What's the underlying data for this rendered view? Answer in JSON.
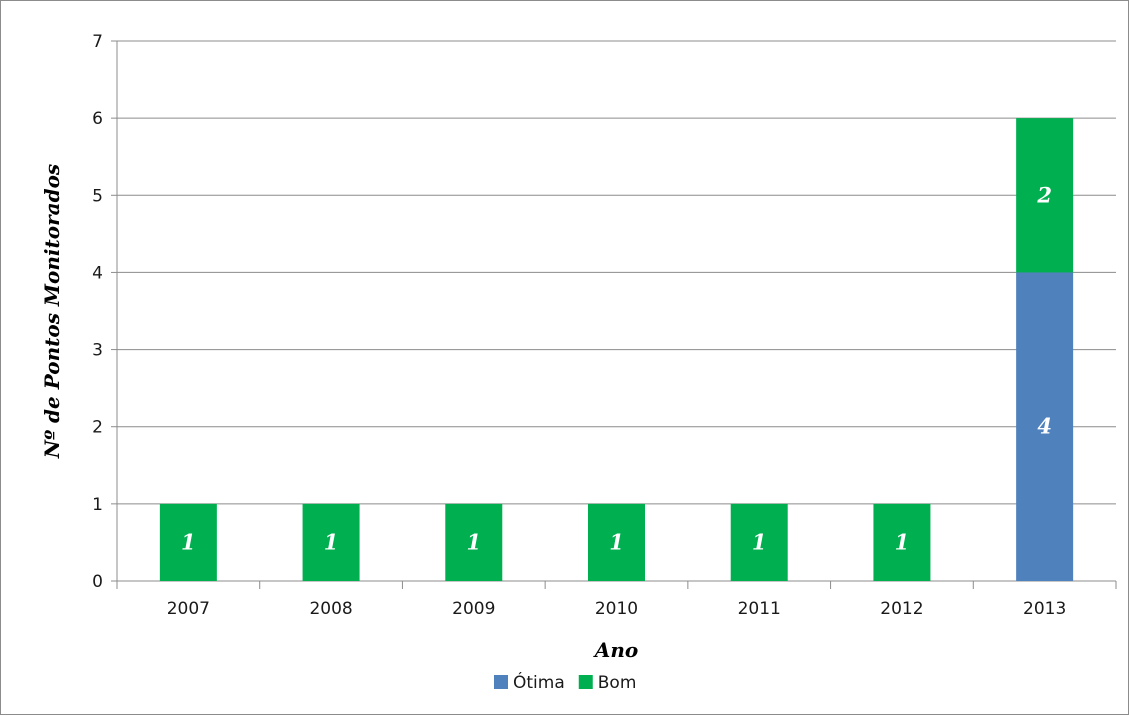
{
  "chart_data": {
    "type": "bar",
    "stacked": true,
    "categories": [
      "2007",
      "2008",
      "2009",
      "2010",
      "2011",
      "2012",
      "2013"
    ],
    "series": [
      {
        "name": "Ótima",
        "color": "#4f81bd",
        "values": [
          0,
          0,
          0,
          0,
          0,
          0,
          4
        ]
      },
      {
        "name": "Bom",
        "color": "#00b050",
        "values": [
          1,
          1,
          1,
          1,
          1,
          1,
          2
        ]
      }
    ],
    "data_labels": [
      [
        "",
        "",
        "",
        "",
        "",
        "",
        "4"
      ],
      [
        "1",
        "1",
        "1",
        "1",
        "1",
        "1",
        "2"
      ]
    ],
    "xlabel": "Ano",
    "ylabel": "Nº de Pontos Monitorados",
    "ylim": [
      0,
      7
    ],
    "yticks": [
      "0",
      "1",
      "2",
      "3",
      "4",
      "5",
      "6",
      "7"
    ],
    "grid": true,
    "legend_position": "bottom"
  }
}
